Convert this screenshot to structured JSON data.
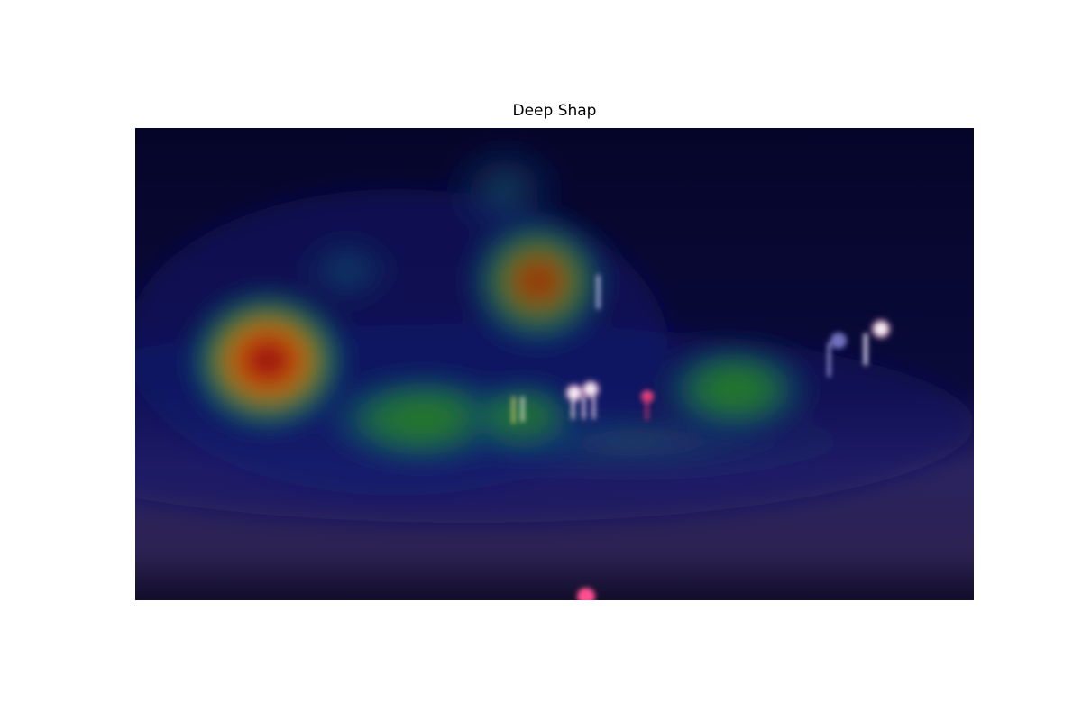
{
  "title": "Deep Shap"
}
